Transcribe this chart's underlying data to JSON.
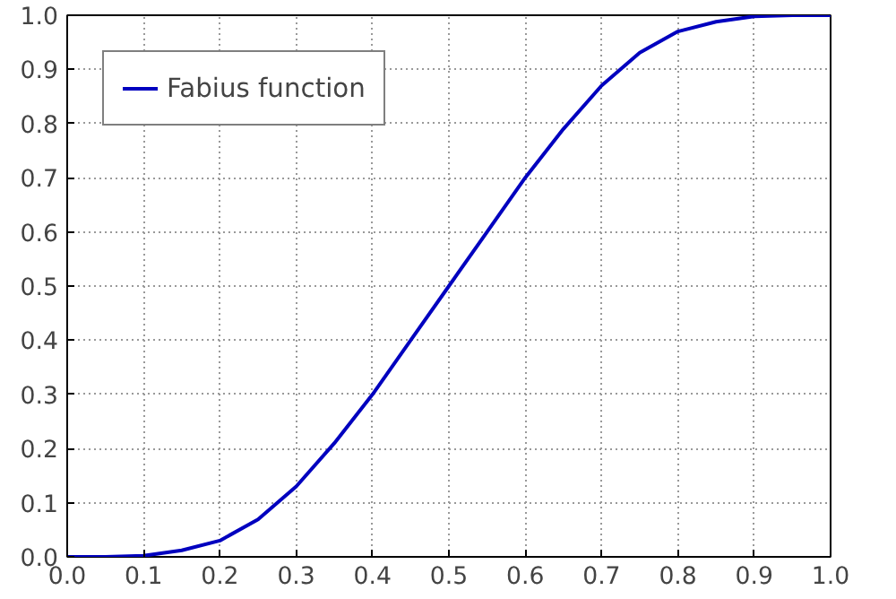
{
  "chart_data": {
    "type": "line",
    "x": [
      0,
      0.05,
      0.1,
      0.15,
      0.2,
      0.25,
      0.3,
      0.35,
      0.4,
      0.45,
      0.5,
      0.55,
      0.6,
      0.65,
      0.7,
      0.75,
      0.8,
      0.85,
      0.9,
      0.95,
      1.0
    ],
    "series": [
      {
        "name": "Fabius function",
        "color": "#0000bf",
        "values": [
          0,
          0.0,
          0.002,
          0.012,
          0.03,
          0.069,
          0.13,
          0.21,
          0.3,
          0.4,
          0.5,
          0.6,
          0.7,
          0.79,
          0.87,
          0.931,
          0.97,
          0.988,
          0.998,
          1.0,
          1.0
        ]
      }
    ],
    "xlim": [
      0,
      1
    ],
    "ylim": [
      0,
      1
    ],
    "xticks": [
      {
        "value": 0,
        "label": "0.0"
      },
      {
        "value": 0.1,
        "label": "0.1"
      },
      {
        "value": 0.2,
        "label": "0.2"
      },
      {
        "value": 0.3,
        "label": "0.3"
      },
      {
        "value": 0.4,
        "label": "0.4"
      },
      {
        "value": 0.5,
        "label": "0.5"
      },
      {
        "value": 0.6,
        "label": "0.6"
      },
      {
        "value": 0.7,
        "label": "0.7"
      },
      {
        "value": 0.8,
        "label": "0.8"
      },
      {
        "value": 0.9,
        "label": "0.9"
      },
      {
        "value": 1,
        "label": "1.0"
      }
    ],
    "yticks": [
      {
        "value": 0,
        "label": "0.0"
      },
      {
        "value": 0.1,
        "label": "0.1"
      },
      {
        "value": 0.2,
        "label": "0.2"
      },
      {
        "value": 0.3,
        "label": "0.3"
      },
      {
        "value": 0.4,
        "label": "0.4"
      },
      {
        "value": 0.5,
        "label": "0.5"
      },
      {
        "value": 0.6,
        "label": "0.6"
      },
      {
        "value": 0.7,
        "label": "0.7"
      },
      {
        "value": 0.8,
        "label": "0.8"
      },
      {
        "value": 0.9,
        "label": "0.9"
      },
      {
        "value": 1,
        "label": "1.0"
      }
    ],
    "grid": true,
    "legend": "top left",
    "line_style": "solid"
  }
}
